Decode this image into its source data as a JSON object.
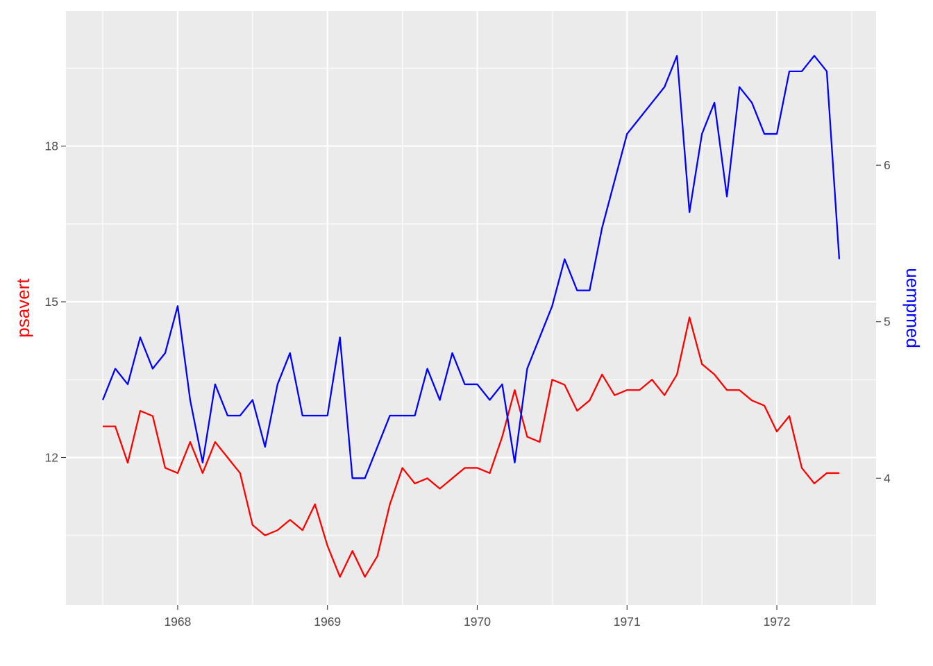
{
  "chart_data": {
    "type": "line",
    "x": [
      "1967-07",
      "1967-08",
      "1967-09",
      "1967-10",
      "1967-11",
      "1967-12",
      "1968-01",
      "1968-02",
      "1968-03",
      "1968-04",
      "1968-05",
      "1968-06",
      "1968-07",
      "1968-08",
      "1968-09",
      "1968-10",
      "1968-11",
      "1968-12",
      "1969-01",
      "1969-02",
      "1969-03",
      "1969-04",
      "1969-05",
      "1969-06",
      "1969-07",
      "1969-08",
      "1969-09",
      "1969-10",
      "1969-11",
      "1969-12",
      "1970-01",
      "1970-02",
      "1970-03",
      "1970-04",
      "1970-05",
      "1970-06",
      "1970-07",
      "1970-08",
      "1970-09",
      "1970-10",
      "1970-11",
      "1970-12",
      "1971-01",
      "1971-02",
      "1971-03",
      "1971-04",
      "1971-05",
      "1971-06",
      "1971-07",
      "1971-08",
      "1971-09",
      "1971-10",
      "1971-11",
      "1971-12",
      "1972-01",
      "1972-02",
      "1972-03",
      "1972-04",
      "1972-05",
      "1972-06"
    ],
    "series": [
      {
        "name": "psavert",
        "axis": "left",
        "color": "#ff0000",
        "values": [
          12.6,
          12.6,
          11.9,
          12.9,
          12.8,
          11.8,
          11.7,
          12.3,
          11.7,
          12.3,
          12.0,
          11.7,
          10.7,
          10.5,
          10.6,
          10.8,
          10.6,
          11.1,
          10.3,
          9.7,
          10.2,
          9.7,
          10.1,
          11.1,
          11.8,
          11.5,
          11.6,
          11.4,
          11.6,
          11.8,
          11.8,
          11.7,
          12.4,
          13.3,
          12.4,
          12.3,
          13.5,
          13.4,
          12.9,
          13.1,
          13.6,
          13.2,
          13.3,
          13.3,
          13.5,
          13.2,
          13.6,
          14.7,
          13.8,
          13.6,
          13.3,
          13.3,
          13.1,
          13.0,
          12.5,
          12.8,
          11.8,
          11.5,
          11.7,
          11.7
        ]
      },
      {
        "name": "uempmed",
        "axis": "right",
        "color": "#0000ff",
        "values": [
          4.5,
          4.7,
          4.6,
          4.9,
          4.7,
          4.8,
          5.1,
          4.5,
          4.1,
          4.6,
          4.4,
          4.4,
          4.5,
          4.2,
          4.6,
          4.8,
          4.4,
          4.4,
          4.4,
          4.9,
          4.0,
          4.0,
          4.2,
          4.4,
          4.4,
          4.4,
          4.7,
          4.5,
          4.8,
          4.6,
          4.6,
          4.5,
          4.6,
          4.1,
          4.7,
          4.9,
          5.1,
          5.4,
          5.2,
          5.2,
          5.6,
          5.9,
          6.2,
          6.3,
          6.4,
          6.5,
          6.7,
          5.7,
          6.2,
          6.4,
          5.8,
          6.5,
          6.4,
          6.2,
          6.2,
          6.6,
          6.6,
          6.7,
          6.6,
          5.4
        ]
      }
    ],
    "x_ticks": [
      "1968",
      "1969",
      "1970",
      "1971",
      "1972"
    ],
    "y_left_ticks": [
      "12",
      "15",
      "18"
    ],
    "y_right_ticks": [
      "4",
      "5",
      "6"
    ],
    "ylabel_left": "psavert",
    "ylabel_right": "uempmed",
    "ylim_left": [
      9.16,
      20.6
    ],
    "ylim_right": [
      3.19,
      6.985
    ],
    "grid": true,
    "panel_background": "#ebebeb",
    "grid_color": "#ffffff"
  }
}
